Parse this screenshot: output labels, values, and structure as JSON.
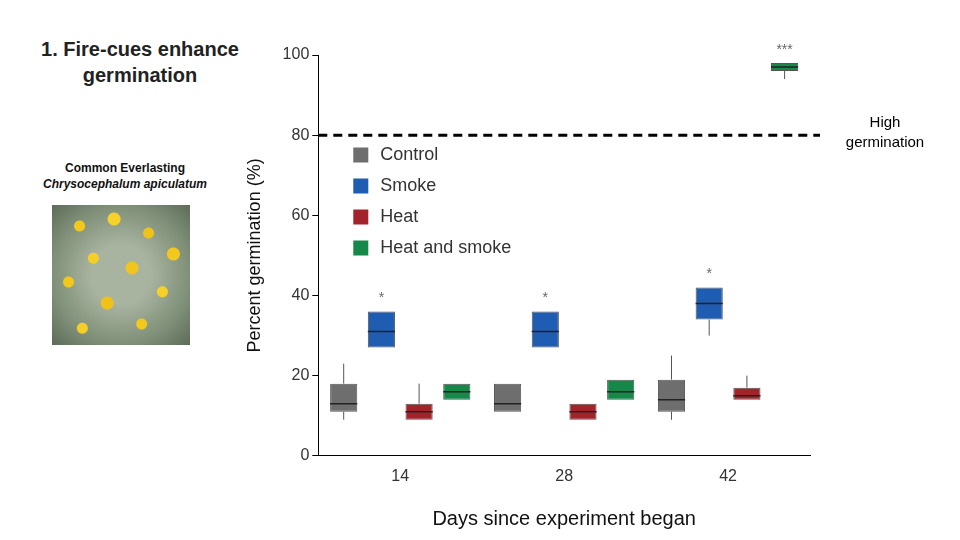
{
  "slide": {
    "title": "1. Fire-cues enhance germination",
    "species": "Common Everlasting",
    "species_latin": "Chrysocephalum apiculatum"
  },
  "chart_data": {
    "type": "boxplot",
    "x_label": "Days since experiment began",
    "y_label": "Percent germination (%)",
    "categories": [
      14,
      28,
      42
    ],
    "ylim": [
      0,
      100
    ],
    "yticks": [
      0,
      20,
      40,
      60,
      80,
      100
    ],
    "grid": false,
    "legend": "top-left",
    "series": [
      {
        "name": "Control",
        "color": "#6e6e6e",
        "values": [
          [
            9,
            11,
            13,
            18,
            23
          ],
          [
            11,
            11,
            13,
            18,
            18
          ],
          [
            9,
            11,
            14,
            19,
            25
          ]
        ]
      },
      {
        "name": "Smoke",
        "color": "#1f5db3",
        "values": [
          [
            27,
            27,
            31,
            36,
            36
          ],
          [
            27,
            27,
            31,
            36,
            36
          ],
          [
            30,
            34,
            38,
            42,
            42
          ]
        ]
      },
      {
        "name": "Heat",
        "color": "#a3232a",
        "values": [
          [
            9,
            9,
            11,
            13,
            18
          ],
          [
            9,
            9,
            11,
            13,
            13
          ],
          [
            14,
            14,
            15,
            17,
            20
          ]
        ]
      },
      {
        "name": "Heat and smoke",
        "color": "#16894a",
        "values": [
          [
            14,
            14,
            16,
            18,
            18
          ],
          [
            14,
            14,
            16,
            19,
            19
          ],
          [
            94,
            96,
            97,
            98,
            98
          ]
        ]
      }
    ],
    "annotations": [
      {
        "category": 14,
        "series": "Smoke",
        "text": "*"
      },
      {
        "category": 28,
        "series": "Smoke",
        "text": "*"
      },
      {
        "category": 42,
        "series": "Smoke",
        "text": "*"
      },
      {
        "category": 42,
        "series": "Heat and smoke",
        "text": "***"
      }
    ],
    "reference_line": {
      "value": 80,
      "label": "High germination",
      "line_style": "dashed"
    }
  }
}
